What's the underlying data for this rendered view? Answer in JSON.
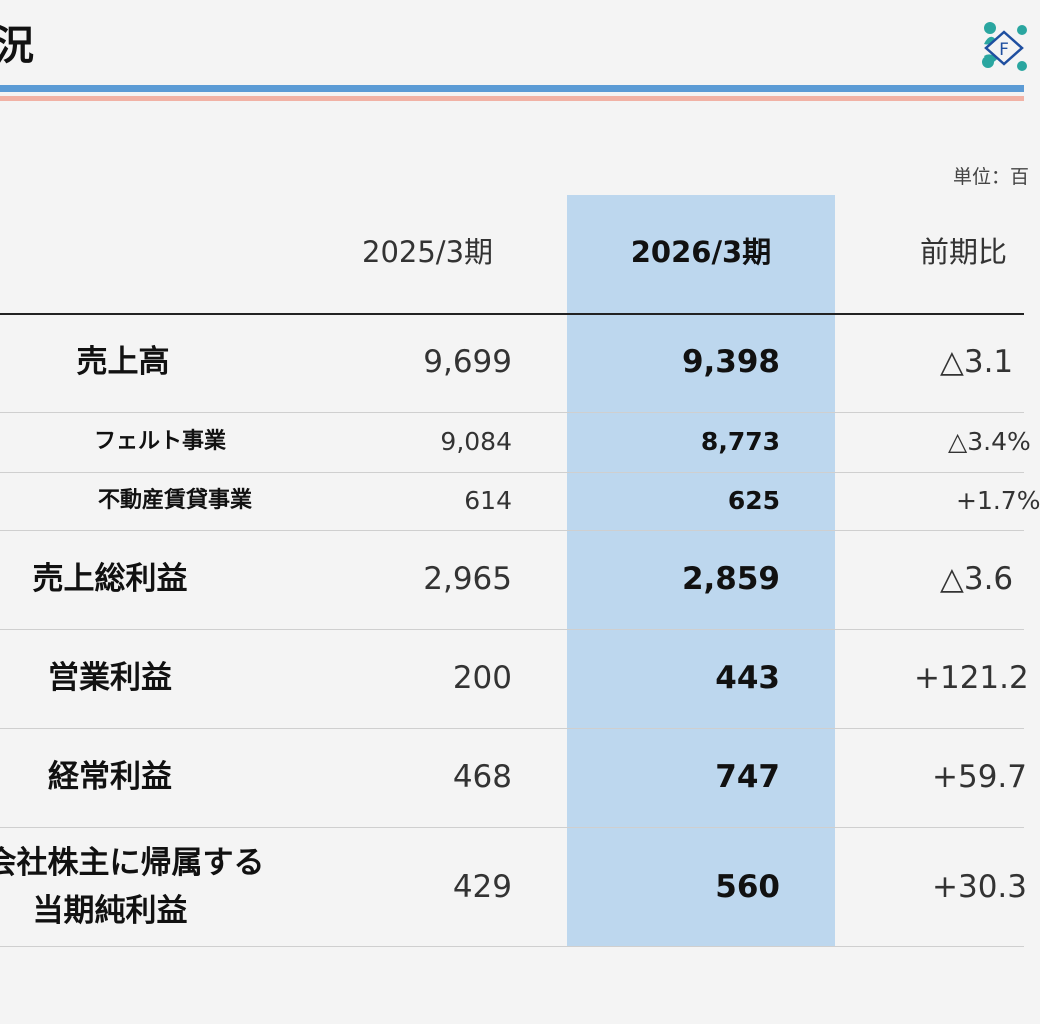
{
  "slide": {
    "title": "況",
    "unit_label": "単位：百"
  },
  "table": {
    "headers": {
      "prev": "2025/3期",
      "curr": "2026/3期",
      "ratio": "前期比"
    },
    "rows": [
      {
        "label": "売上高",
        "prev": "9,699",
        "curr": "9,398",
        "ratio": "△3.1"
      },
      {
        "label": "フェルト事業",
        "prev": "9,084",
        "curr": "8,773",
        "ratio": "△3.4%"
      },
      {
        "label": "不動産賃貸事業",
        "prev": "614",
        "curr": "625",
        "ratio": "+1.7%"
      },
      {
        "label": "売上総利益",
        "prev": "2,965",
        "curr": "2,859",
        "ratio": "△3.6"
      },
      {
        "label": "営業利益",
        "prev": "200",
        "curr": "443",
        "ratio": "+121.2"
      },
      {
        "label": "経常利益",
        "prev": "468",
        "curr": "747",
        "ratio": "+59.7"
      },
      {
        "label_line1": "会社株主に帰属する",
        "label_line2": "当期純利益",
        "prev": "429",
        "curr": "560",
        "ratio": "+30.3"
      }
    ]
  },
  "colors": {
    "accent_blue": "#5b9bd5",
    "accent_pink": "#f1b2a5",
    "highlight_column": "#bdd7ee",
    "logo_teal": "#2aa6a0"
  },
  "logo": {
    "icon": "company-logo-icon",
    "letter": "F"
  }
}
